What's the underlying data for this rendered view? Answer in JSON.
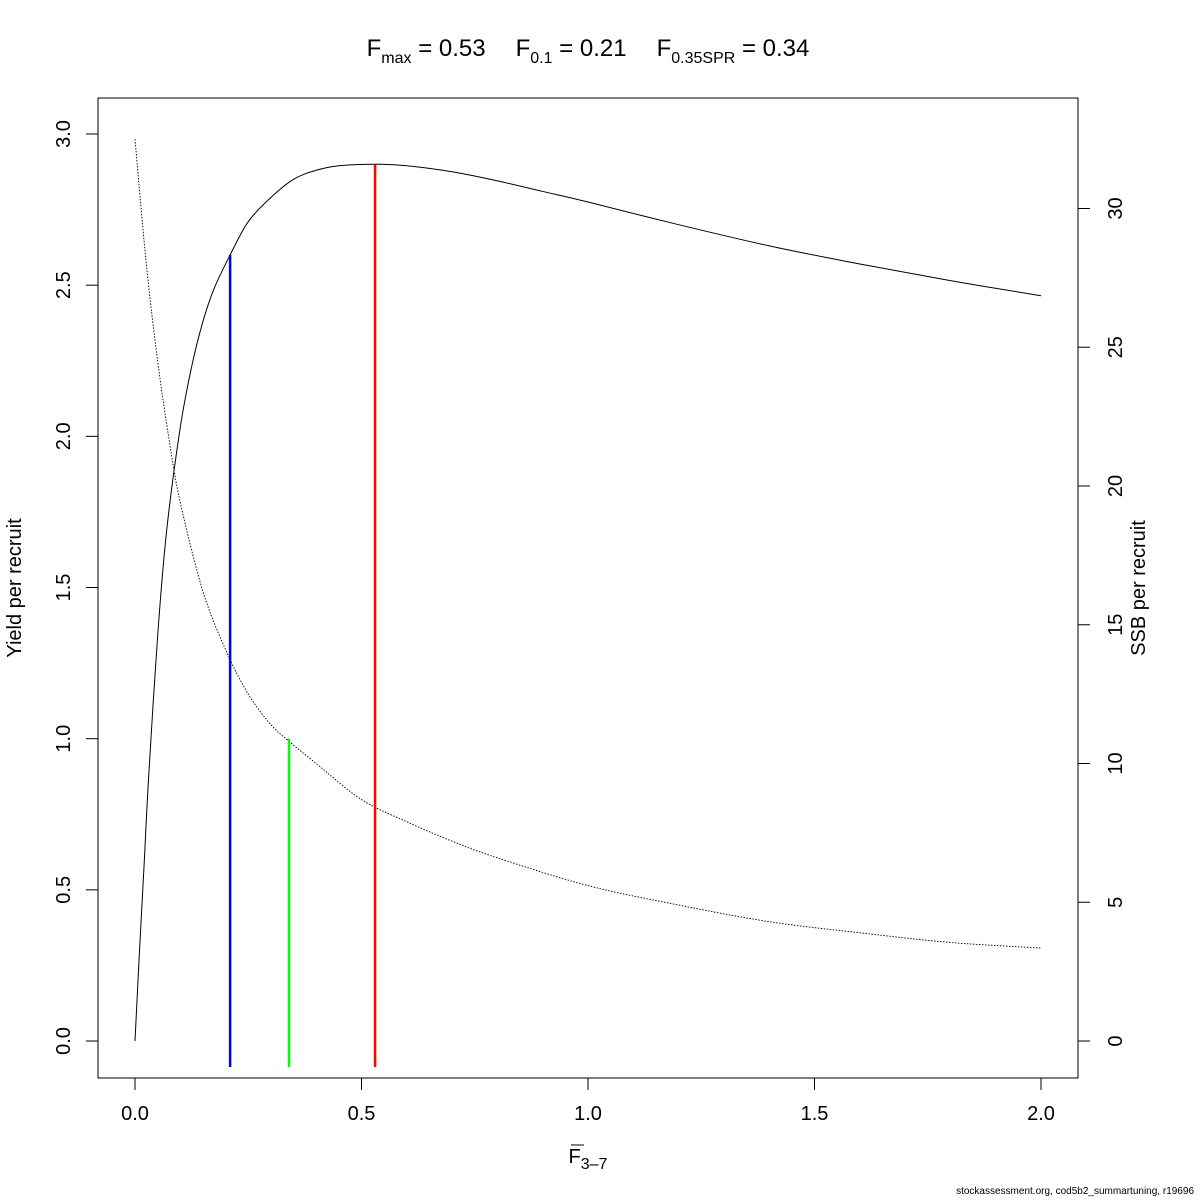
{
  "chart_data": {
    "type": "line",
    "title": {
      "items": [
        {
          "main": "F",
          "sub": "max",
          "value": "0.53"
        },
        {
          "main": "F",
          "sub": "0.1",
          "value": "0.21"
        },
        {
          "main": "F",
          "sub": "0.35SPR",
          "value": "0.34"
        }
      ]
    },
    "xlabel": {
      "main": "F",
      "sub": "3–7",
      "overline": true
    },
    "ylabel": "Yield per recruit",
    "ylabel_right": "SSB per recruit",
    "xlim": [
      0,
      2
    ],
    "ylim": [
      0,
      3
    ],
    "ylim_right": [
      0,
      33.5
    ],
    "xticks": [
      0,
      0.5,
      1,
      1.5,
      2
    ],
    "xtick_labels": [
      "0.0",
      "0.5",
      "1.0",
      "1.5",
      "2.0"
    ],
    "yticks": [
      0,
      0.5,
      1,
      1.5,
      2,
      2.5,
      3
    ],
    "ytick_labels": [
      "0.0",
      "0.5",
      "1.0",
      "1.5",
      "2.0",
      "2.5",
      "3.0"
    ],
    "yticks_right": [
      0,
      5,
      10,
      15,
      20,
      25,
      30
    ],
    "ytick_labels_right": [
      "0",
      "5",
      "10",
      "15",
      "20",
      "25",
      "30"
    ],
    "series": [
      {
        "axis": "left",
        "style": "solid",
        "color": "#000000",
        "x": [
          0,
          0.01,
          0.02,
          0.03,
          0.05,
          0.07,
          0.1,
          0.125,
          0.15,
          0.175,
          0.21,
          0.25,
          0.3,
          0.35,
          0.4,
          0.45,
          0.53,
          0.6,
          0.7,
          0.8,
          0.9,
          1.0,
          1.2,
          1.4,
          1.6,
          1.8,
          2.0
        ],
        "values": [
          0,
          0.3,
          0.58,
          0.87,
          1.34,
          1.69,
          2.03,
          2.23,
          2.38,
          2.49,
          2.6,
          2.71,
          2.79,
          2.85,
          2.88,
          2.895,
          2.9,
          2.895,
          2.875,
          2.845,
          2.81,
          2.775,
          2.7,
          2.63,
          2.57,
          2.515,
          2.465
        ]
      },
      {
        "axis": "right",
        "style": "dotted",
        "color": "#000000",
        "x": [
          0,
          0.025,
          0.05,
          0.075,
          0.1,
          0.15,
          0.2,
          0.25,
          0.3,
          0.34,
          0.4,
          0.5,
          0.6,
          0.7,
          0.8,
          1.0,
          1.2,
          1.4,
          1.6,
          1.8,
          2.0
        ],
        "values": [
          32.5,
          28.0,
          24.5,
          21.7,
          19.4,
          16.2,
          14.1,
          12.5,
          11.4,
          10.8,
          10.0,
          8.7,
          7.9,
          7.2,
          6.6,
          5.6,
          4.9,
          4.3,
          3.9,
          3.55,
          3.35
        ]
      }
    ],
    "reference_lines": [
      {
        "label": "F0.1",
        "x": 0.21,
        "y": 2.6,
        "color": "#0000ff"
      },
      {
        "label": "F0.35SPR",
        "x": 0.34,
        "y": 1.0,
        "color": "#00ff00"
      },
      {
        "label": "Fmax",
        "x": 0.53,
        "y": 2.9,
        "color": "#ff0000"
      }
    ],
    "grid": false,
    "legend": "none"
  },
  "footer": "stockassessment.org, cod5b2_summartuning, r19696"
}
